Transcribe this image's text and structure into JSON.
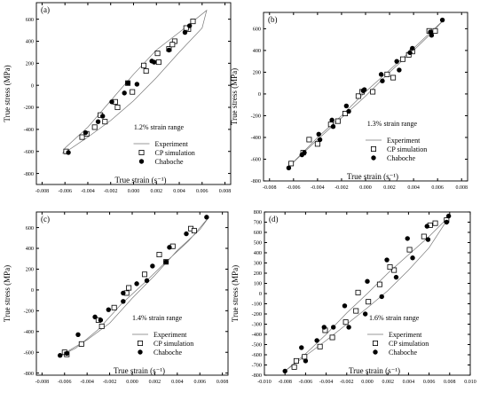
{
  "chart_data": [
    {
      "panel": "(a)",
      "type": "scatter",
      "annotation": "1.2% strain range",
      "xlabel": "True strain (s⁻¹)",
      "ylabel": "True stress (MPa)",
      "xlim": [
        -0.0085,
        0.0085
      ],
      "ylim": [
        -900,
        750
      ],
      "xticks": [
        -0.008,
        -0.006,
        -0.004,
        -0.002,
        0.0,
        0.002,
        0.004,
        0.006,
        0.008
      ],
      "xtick_labels": [
        "-0.008",
        "-0.006",
        "-0.004",
        "-0.002",
        "0.000",
        "0.002",
        "0.004",
        "0.006",
        "0.008"
      ],
      "yticks": [
        -800,
        -600,
        -400,
        -200,
        0,
        200,
        400,
        600
      ],
      "ytick_labels": [
        "-800",
        "-600",
        "-400",
        "-200",
        "0",
        "200",
        "400",
        "600"
      ],
      "legend": [
        "Experiment",
        "CP simulation",
        "Chaboche"
      ],
      "series": [
        {
          "name": "Experiment",
          "kind": "loop",
          "x": [
            -0.006,
            -0.004,
            -0.002,
            0.0,
            0.002,
            0.004,
            0.006,
            0.0064,
            0.004,
            0.002,
            0.0,
            -0.002,
            -0.004,
            -0.006,
            -0.0062
          ],
          "y": [
            -610,
            -470,
            -320,
            -140,
            70,
            300,
            520,
            680,
            480,
            320,
            100,
            -140,
            -380,
            -570,
            -620
          ]
        },
        {
          "name": "CP simulation",
          "kind": "open-square",
          "x": [
            -0.0059,
            -0.0045,
            -0.0034,
            -0.0025,
            -0.0014,
            -0.0001,
            0.0011,
            0.0022,
            0.0031,
            0.0036,
            0.0048,
            0.0052,
            -0.0041,
            -0.0029,
            -0.0016,
            -0.0005,
            0.0009,
            0.0021,
            0.0034,
            0.0046
          ],
          "y": [
            -600,
            -470,
            -380,
            -330,
            -200,
            -60,
            130,
            210,
            330,
            400,
            510,
            580,
            -440,
            -270,
            -150,
            20,
            180,
            290,
            370,
            520
          ]
        },
        {
          "name": "Chaboche",
          "kind": "filled-circle",
          "x": [
            -0.0057,
            -0.0042,
            -0.0031,
            -0.0019,
            -0.0008,
            0.0003,
            0.0018,
            0.0031,
            0.0045,
            0.0049,
            -0.0027,
            -0.0005,
            0.0016
          ],
          "y": [
            -610,
            -430,
            -330,
            -150,
            -70,
            10,
            210,
            320,
            480,
            540,
            -280,
            20,
            220
          ]
        }
      ]
    },
    {
      "panel": "(b)",
      "type": "scatter",
      "annotation": "1.3% strain range",
      "xlabel": "True strain (s⁻¹)",
      "ylabel": "True stress (MPa)",
      "xlim": [
        -0.0085,
        0.0085
      ],
      "ylim": [
        -800,
        750
      ],
      "xticks": [
        -0.008,
        -0.006,
        -0.004,
        -0.002,
        0.0,
        0.002,
        0.004,
        0.006,
        0.008
      ],
      "xtick_labels": [
        "-0.008",
        "-0.006",
        "-0.004",
        "-0.002",
        "0.000",
        "0.002",
        "0.004",
        "0.006",
        "0.008"
      ],
      "yticks": [
        -800,
        -600,
        -400,
        -200,
        0,
        200,
        400,
        600
      ],
      "ytick_labels": [
        "-800",
        "-600",
        "-400",
        "-200",
        "0",
        "200",
        "400",
        "600"
      ],
      "legend": [
        "Experiment",
        "CP simulation",
        "Chaboche"
      ],
      "series": [
        {
          "name": "Experiment",
          "kind": "loop",
          "x": [
            -0.0065,
            -0.004,
            -0.002,
            0.0,
            0.002,
            0.004,
            0.0055,
            0.0065,
            0.004,
            0.002,
            0.0,
            -0.002,
            -0.004,
            -0.0055,
            -0.0065
          ],
          "y": [
            -680,
            -420,
            -220,
            -20,
            200,
            400,
            560,
            680,
            420,
            220,
            20,
            -200,
            -400,
            -570,
            -680
          ]
        },
        {
          "name": "CP simulation",
          "kind": "open-square",
          "x": [
            -0.0062,
            -0.0052,
            -0.004,
            -0.0029,
            -0.0017,
            -0.0006,
            0.0006,
            0.0018,
            0.0031,
            0.0039,
            0.0053,
            0.0058,
            -0.0047,
            -0.0023,
            -0.0003,
            0.0023,
            0.0036
          ],
          "y": [
            -640,
            -540,
            -460,
            -280,
            -180,
            -20,
            20,
            180,
            320,
            390,
            580,
            580,
            -420,
            -250,
            20,
            150,
            360
          ]
        },
        {
          "name": "Chaboche",
          "kind": "filled-circle",
          "x": [
            -0.0064,
            -0.0051,
            -0.0038,
            -0.0027,
            -0.0014,
            -0.0001,
            0.0013,
            0.0026,
            0.0039,
            0.0054,
            0.0064,
            -0.0053,
            -0.0039,
            -0.0028,
            -0.0016,
            -0.0002,
            0.0014,
            0.0028,
            0.0037,
            0.0055
          ],
          "y": [
            -680,
            -540,
            -420,
            -300,
            -160,
            40,
            180,
            300,
            420,
            570,
            680,
            -560,
            -370,
            -240,
            -110,
            30,
            120,
            220,
            380,
            540
          ]
        }
      ]
    },
    {
      "panel": "(c)",
      "type": "scatter",
      "annotation": "1.4% strain range",
      "xlabel": "True strain (s⁻¹)",
      "ylabel": "True stress (MPa)",
      "xlim": [
        -0.0085,
        0.0085
      ],
      "ylim": [
        -820,
        750
      ],
      "xticks": [
        -0.008,
        -0.006,
        -0.004,
        -0.002,
        0.0,
        0.002,
        0.004,
        0.006,
        0.008
      ],
      "xtick_labels": [
        "-0.008",
        "-0.006",
        "-0.004",
        "-0.002",
        "0.000",
        "0.002",
        "0.004",
        "0.006",
        "0.008"
      ],
      "yticks": [
        -800,
        -600,
        -400,
        -200,
        0,
        200,
        400,
        600
      ],
      "ytick_labels": [
        "-800",
        "-600",
        "-400",
        "-200",
        "0",
        "200",
        "400",
        "600"
      ],
      "legend": [
        "Experiment",
        "CP simulation",
        "Chaboche"
      ],
      "series": [
        {
          "name": "Experiment",
          "kind": "loop",
          "x": [
            -0.0065,
            -0.004,
            -0.002,
            0.0,
            0.002,
            0.004,
            0.006,
            0.0068,
            0.005,
            0.003,
            0.001,
            -0.001,
            -0.003,
            -0.005,
            -0.0065
          ],
          "y": [
            -640,
            -480,
            -320,
            -80,
            140,
            380,
            580,
            700,
            470,
            270,
            60,
            -140,
            -380,
            -560,
            -640
          ]
        },
        {
          "name": "CP simulation",
          "kind": "open-square",
          "x": [
            -0.006,
            -0.0045,
            -0.003,
            -0.0016,
            -0.0003,
            0.0011,
            0.0024,
            0.0036,
            0.0052,
            0.0055,
            -0.0058,
            -0.0027,
            -0.0005,
            0.003
          ],
          "y": [
            -600,
            -520,
            -290,
            -170,
            20,
            150,
            340,
            420,
            590,
            570,
            -620,
            -350,
            -30,
            270
          ]
        },
        {
          "name": "Chaboche",
          "kind": "filled-circle",
          "x": [
            -0.0064,
            -0.0048,
            -0.0033,
            -0.0021,
            -0.0008,
            0.0004,
            0.0018,
            0.0033,
            0.0048,
            0.0066,
            -0.0058,
            -0.0028,
            -0.0008,
            0.0013,
            0.003
          ],
          "y": [
            -630,
            -430,
            -260,
            -190,
            -30,
            60,
            230,
            410,
            540,
            700,
            -610,
            -290,
            -110,
            90,
            270
          ]
        }
      ]
    },
    {
      "panel": "(d)",
      "type": "scatter",
      "annotation": "1.6% strain range",
      "xlabel": "True strain (s⁻¹)",
      "ylabel": "True stress (MPa)",
      "xlim": [
        -0.01,
        0.01
      ],
      "ylim": [
        -800,
        800
      ],
      "xticks": [
        -0.01,
        -0.008,
        -0.006,
        -0.004,
        -0.002,
        0.0,
        0.002,
        0.004,
        0.006,
        0.008,
        0.01
      ],
      "xtick_labels": [
        "-0.010",
        "-0.008",
        "-0.006",
        "-0.004",
        "-0.002",
        "0.000",
        "0.002",
        "0.004",
        "0.006",
        "0.008",
        "0.010"
      ],
      "yticks": [
        -800,
        -700,
        -600,
        -500,
        -400,
        -300,
        -200,
        -100,
        0,
        100,
        200,
        300,
        400,
        500,
        600,
        700,
        800
      ],
      "ytick_labels": [
        "-800",
        "-700",
        "-600",
        "-500",
        "-400",
        "-300",
        "-200",
        "-100",
        "0",
        "100",
        "200",
        "300",
        "400",
        "500",
        "600",
        "700",
        "800"
      ],
      "legend": [
        "Experiment",
        "CP simulation",
        "Chaboche"
      ],
      "series": [
        {
          "name": "Experiment",
          "kind": "loop",
          "x": [
            -0.008,
            -0.006,
            -0.004,
            -0.002,
            0.0,
            0.002,
            0.004,
            0.006,
            0.008,
            0.006,
            0.004,
            0.002,
            0.0,
            -0.002,
            -0.004,
            -0.006,
            -0.008
          ],
          "y": [
            -760,
            -610,
            -460,
            -300,
            -140,
            30,
            230,
            450,
            760,
            560,
            380,
            200,
            0,
            -190,
            -400,
            -590,
            -760
          ]
        },
        {
          "name": "CP simulation",
          "kind": "open-square",
          "x": [
            -0.0071,
            -0.0061,
            -0.0046,
            -0.0034,
            -0.0021,
            -0.0011,
            0.0001,
            0.0012,
            0.0026,
            0.0041,
            0.0055,
            0.0066,
            0.0077,
            -0.0069,
            -0.0041,
            -0.0009,
            0.0022,
            0.0061
          ],
          "y": [
            -720,
            -620,
            -520,
            -430,
            -280,
            -170,
            -80,
            90,
            230,
            430,
            560,
            690,
            720,
            -660,
            -360,
            10,
            260,
            670
          ]
        },
        {
          "name": "Chaboche",
          "kind": "filled-circle",
          "x": [
            -0.008,
            -0.0064,
            -0.0049,
            -0.0033,
            -0.0018,
            -0.0002,
            0.0014,
            0.0028,
            0.0044,
            0.0059,
            0.0077,
            -0.006,
            -0.0042,
            -0.0022,
            0.0,
            0.0019,
            0.0039,
            0.0058,
            0.0079
          ],
          "y": [
            -760,
            -530,
            -460,
            -330,
            -330,
            -200,
            -30,
            160,
            350,
            530,
            700,
            -660,
            -330,
            -120,
            120,
            330,
            540,
            660,
            760
          ]
        }
      ]
    }
  ]
}
